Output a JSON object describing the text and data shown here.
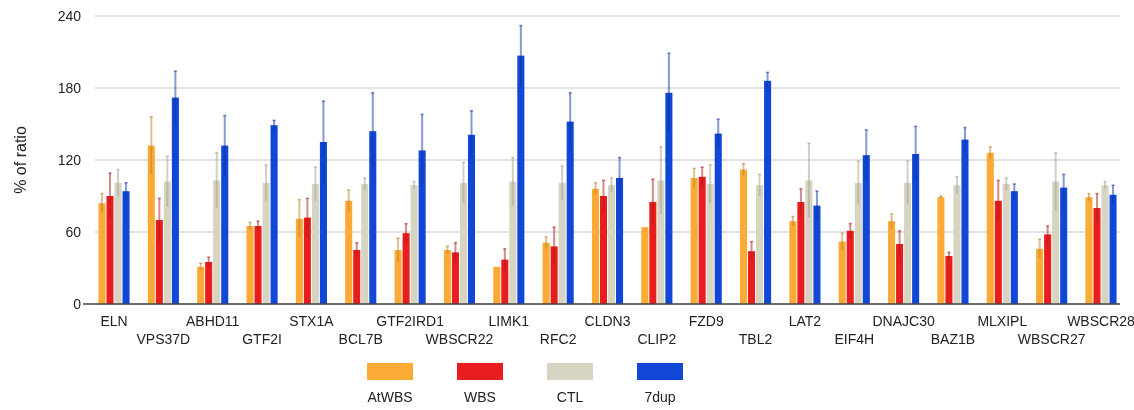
{
  "chart_data": {
    "type": "bar",
    "ylabel": "% of ratio",
    "categories": [
      "ELN",
      "VPS37D",
      "ABHD11",
      "GTF2I",
      "STX1A",
      "BCL7B",
      "GTF2IRD1",
      "WBSCR22",
      "LIMK1",
      "RFC2",
      "CLDN3",
      "CLIP2",
      "FZD9",
      "TBL2",
      "LAT2",
      "EIF4H",
      "DNAJC30",
      "BAZ1B",
      "MLXIPL",
      "WBSCR27",
      "WBSCR28"
    ],
    "series": [
      {
        "name": "AtWBS",
        "color": "#fbab35",
        "values": [
          84,
          132,
          31,
          65,
          71,
          86,
          45,
          45,
          31,
          51,
          96,
          64,
          105,
          112,
          69,
          52,
          69,
          89,
          126,
          46,
          89
        ],
        "errors": [
          8,
          24,
          3,
          3,
          16,
          9,
          10,
          3,
          null,
          5,
          5,
          null,
          8,
          5,
          4,
          7,
          6,
          1,
          5,
          8,
          3
        ]
      },
      {
        "name": "WBS",
        "color": "#e81e1e",
        "values": [
          90,
          70,
          35,
          65,
          72,
          45,
          59,
          43,
          37,
          48,
          90,
          85,
          106,
          44,
          85,
          61,
          50,
          40,
          86,
          58,
          80
        ],
        "errors": [
          19,
          18,
          4,
          4,
          16,
          6,
          8,
          8,
          9,
          16,
          13,
          19,
          8,
          8,
          11,
          6,
          11,
          3,
          17,
          7,
          12
        ]
      },
      {
        "name": "CTL",
        "color": "#d7d4c1",
        "values": [
          101,
          102,
          103,
          101,
          100,
          100,
          99,
          101,
          102,
          101,
          99,
          103,
          100,
          99,
          103,
          101,
          101,
          99,
          100,
          102,
          99
        ],
        "errors": [
          11,
          21,
          23,
          15,
          14,
          5,
          3,
          17,
          20,
          14,
          6,
          28,
          16,
          9,
          31,
          18,
          18,
          7,
          5,
          24,
          3
        ]
      },
      {
        "name": "7dup",
        "color": "#1147d6",
        "values": [
          94,
          172,
          132,
          149,
          135,
          144,
          128,
          141,
          207,
          152,
          105,
          176,
          142,
          186,
          82,
          124,
          125,
          137,
          94,
          97,
          91
        ],
        "errors": [
          7,
          22,
          25,
          4,
          34,
          32,
          30,
          20,
          25,
          24,
          17,
          33,
          12,
          7,
          12,
          21,
          23,
          10,
          6,
          11,
          8
        ]
      }
    ],
    "ylim": [
      0,
      240
    ],
    "yticks": [
      0,
      60,
      120,
      180,
      240
    ],
    "grid": "y",
    "legend": "bottom"
  }
}
